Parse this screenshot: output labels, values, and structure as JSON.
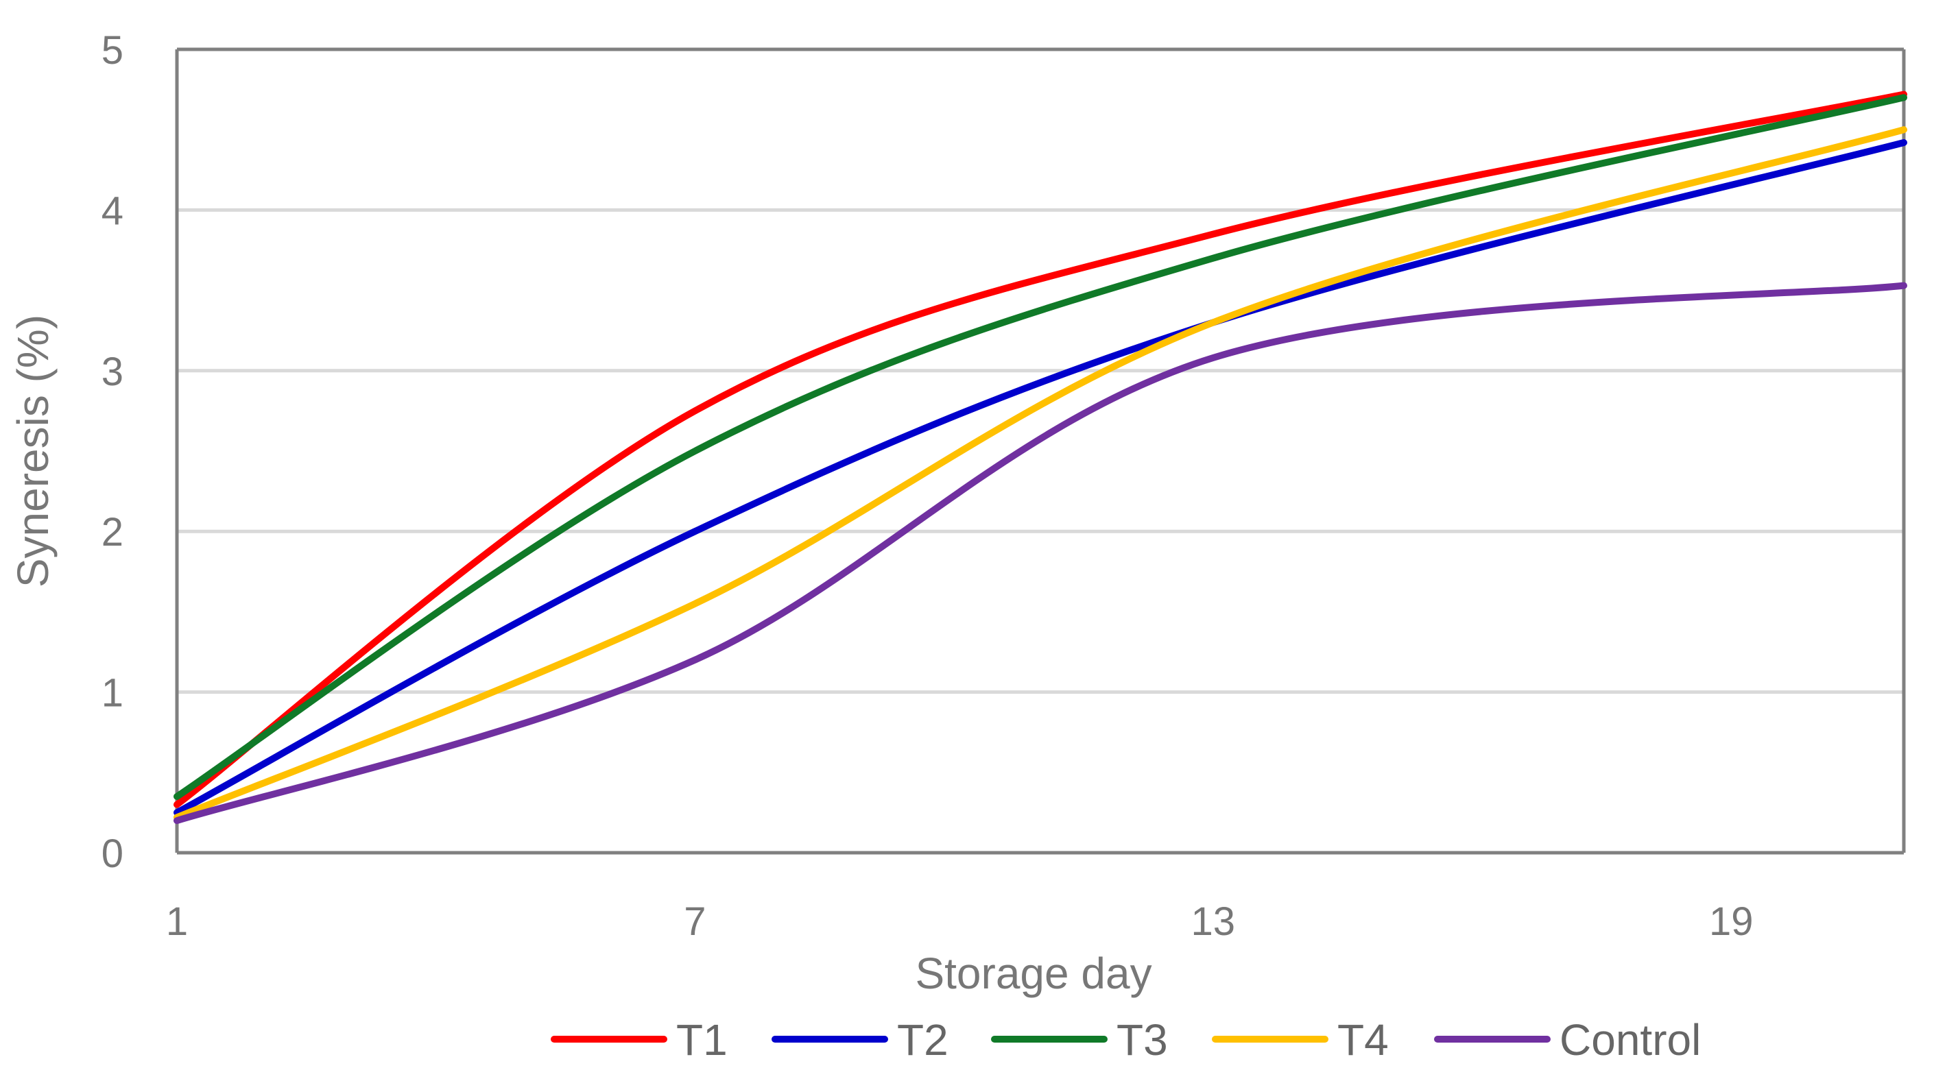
{
  "chart_data": {
    "type": "line",
    "title": "",
    "xlabel": "Storage day",
    "ylabel": "Syneresis (%)",
    "x": [
      1,
      7,
      13,
      21
    ],
    "xlim": [
      1,
      21
    ],
    "xticks": [
      1,
      7,
      13,
      19
    ],
    "ylim": [
      0,
      5
    ],
    "yticks": [
      0,
      1,
      2,
      3,
      4,
      5
    ],
    "grid": true,
    "smooth": true,
    "legend_position": "bottom",
    "series": [
      {
        "name": "T1",
        "color": "#ff0000",
        "values": [
          0.3,
          2.75,
          3.85,
          4.72
        ]
      },
      {
        "name": "T2",
        "color": "#0000cc",
        "values": [
          0.25,
          2.0,
          3.3,
          4.42
        ]
      },
      {
        "name": "T3",
        "color": "#107a28",
        "values": [
          0.35,
          2.5,
          3.7,
          4.7
        ]
      },
      {
        "name": "T4",
        "color": "#ffc000",
        "values": [
          0.22,
          1.55,
          3.3,
          4.5
        ]
      },
      {
        "name": "Control",
        "color": "#7030a0",
        "values": [
          0.2,
          1.2,
          3.08,
          3.53
        ]
      }
    ]
  }
}
